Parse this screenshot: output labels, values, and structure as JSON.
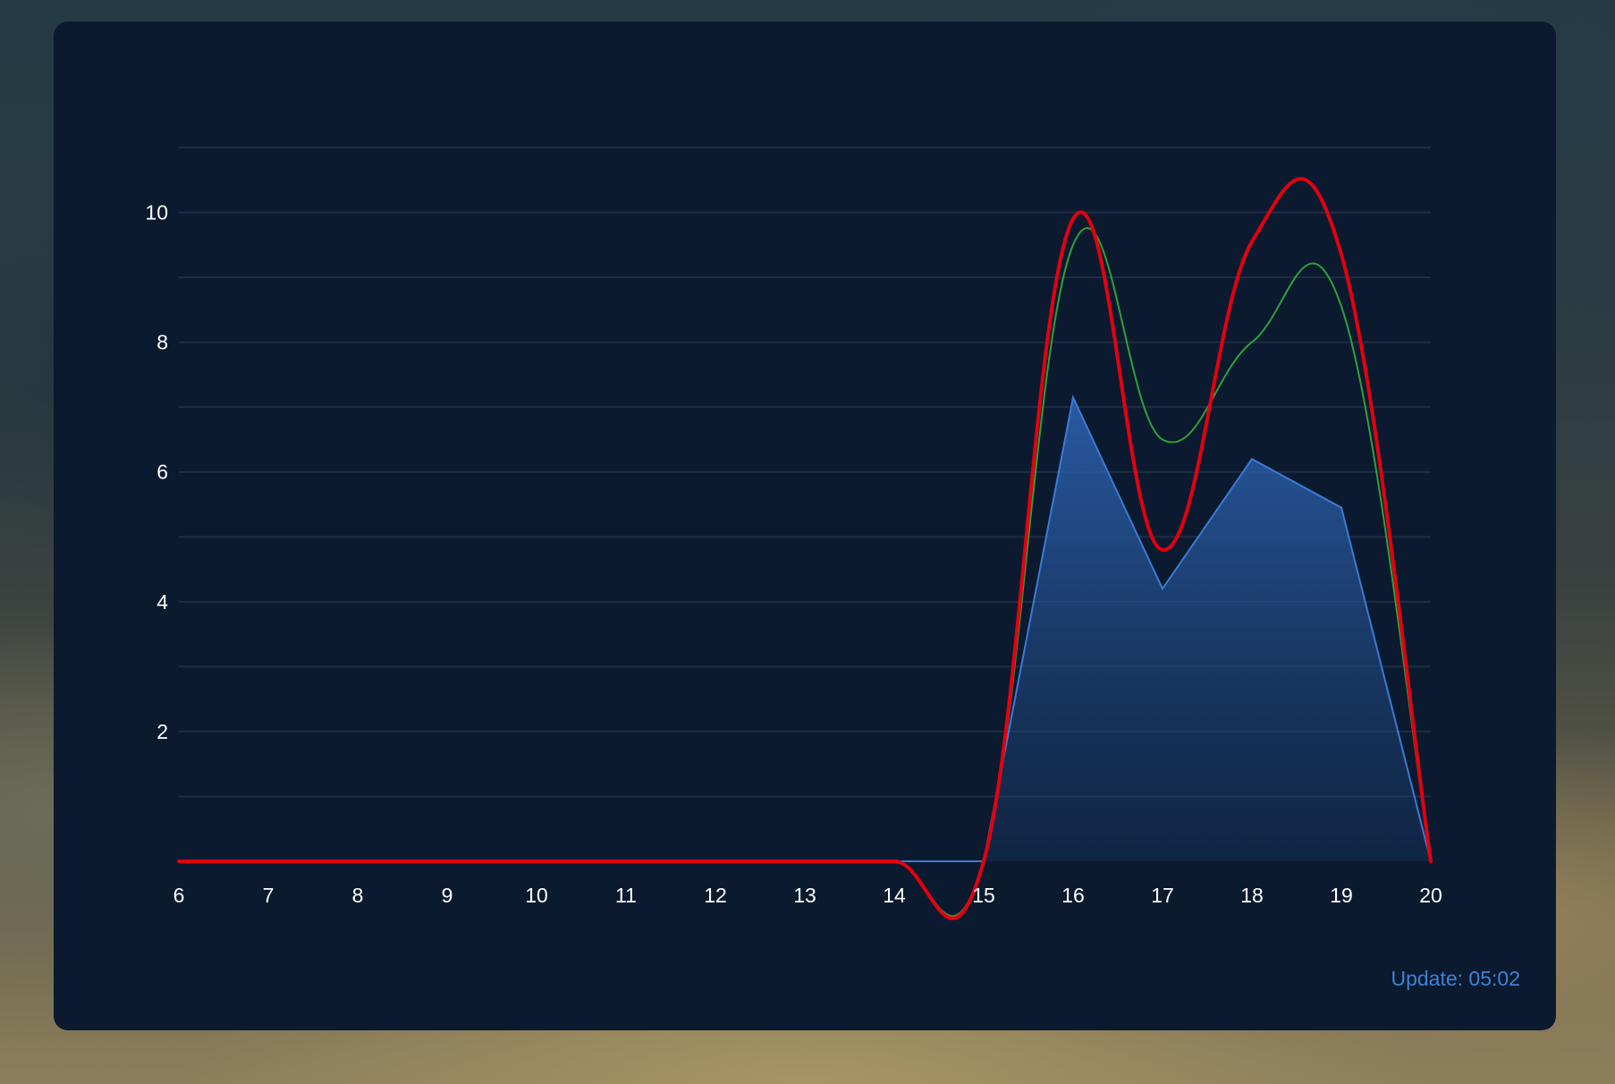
{
  "update_text": "Update: 05:02",
  "chart_data": {
    "type": "line",
    "x": [
      6,
      7,
      8,
      9,
      10,
      11,
      12,
      13,
      14,
      15,
      16,
      17,
      18,
      19,
      20
    ],
    "xlim": [
      6,
      20
    ],
    "ylim": [
      0,
      11
    ],
    "y_ticks": [
      2,
      4,
      6,
      8,
      10
    ],
    "grid": true,
    "series": [
      {
        "style": "area",
        "color": "#3a7bd5",
        "values": [
          0,
          0,
          0,
          0,
          0,
          0,
          0,
          0,
          0,
          0,
          7.15,
          4.2,
          6.2,
          5.45,
          0
        ]
      },
      {
        "style": "smooth-line",
        "color": "#2ea03a",
        "values": [
          0,
          0,
          0,
          0,
          0,
          0,
          0,
          0,
          0,
          0,
          9.5,
          6.5,
          8.0,
          8.55,
          0
        ]
      },
      {
        "style": "smooth-line",
        "color": "#e4000f",
        "values": [
          0,
          0,
          0,
          0,
          0,
          0,
          0,
          0,
          0,
          0,
          9.9,
          4.8,
          9.55,
          9.35,
          0
        ]
      }
    ]
  }
}
